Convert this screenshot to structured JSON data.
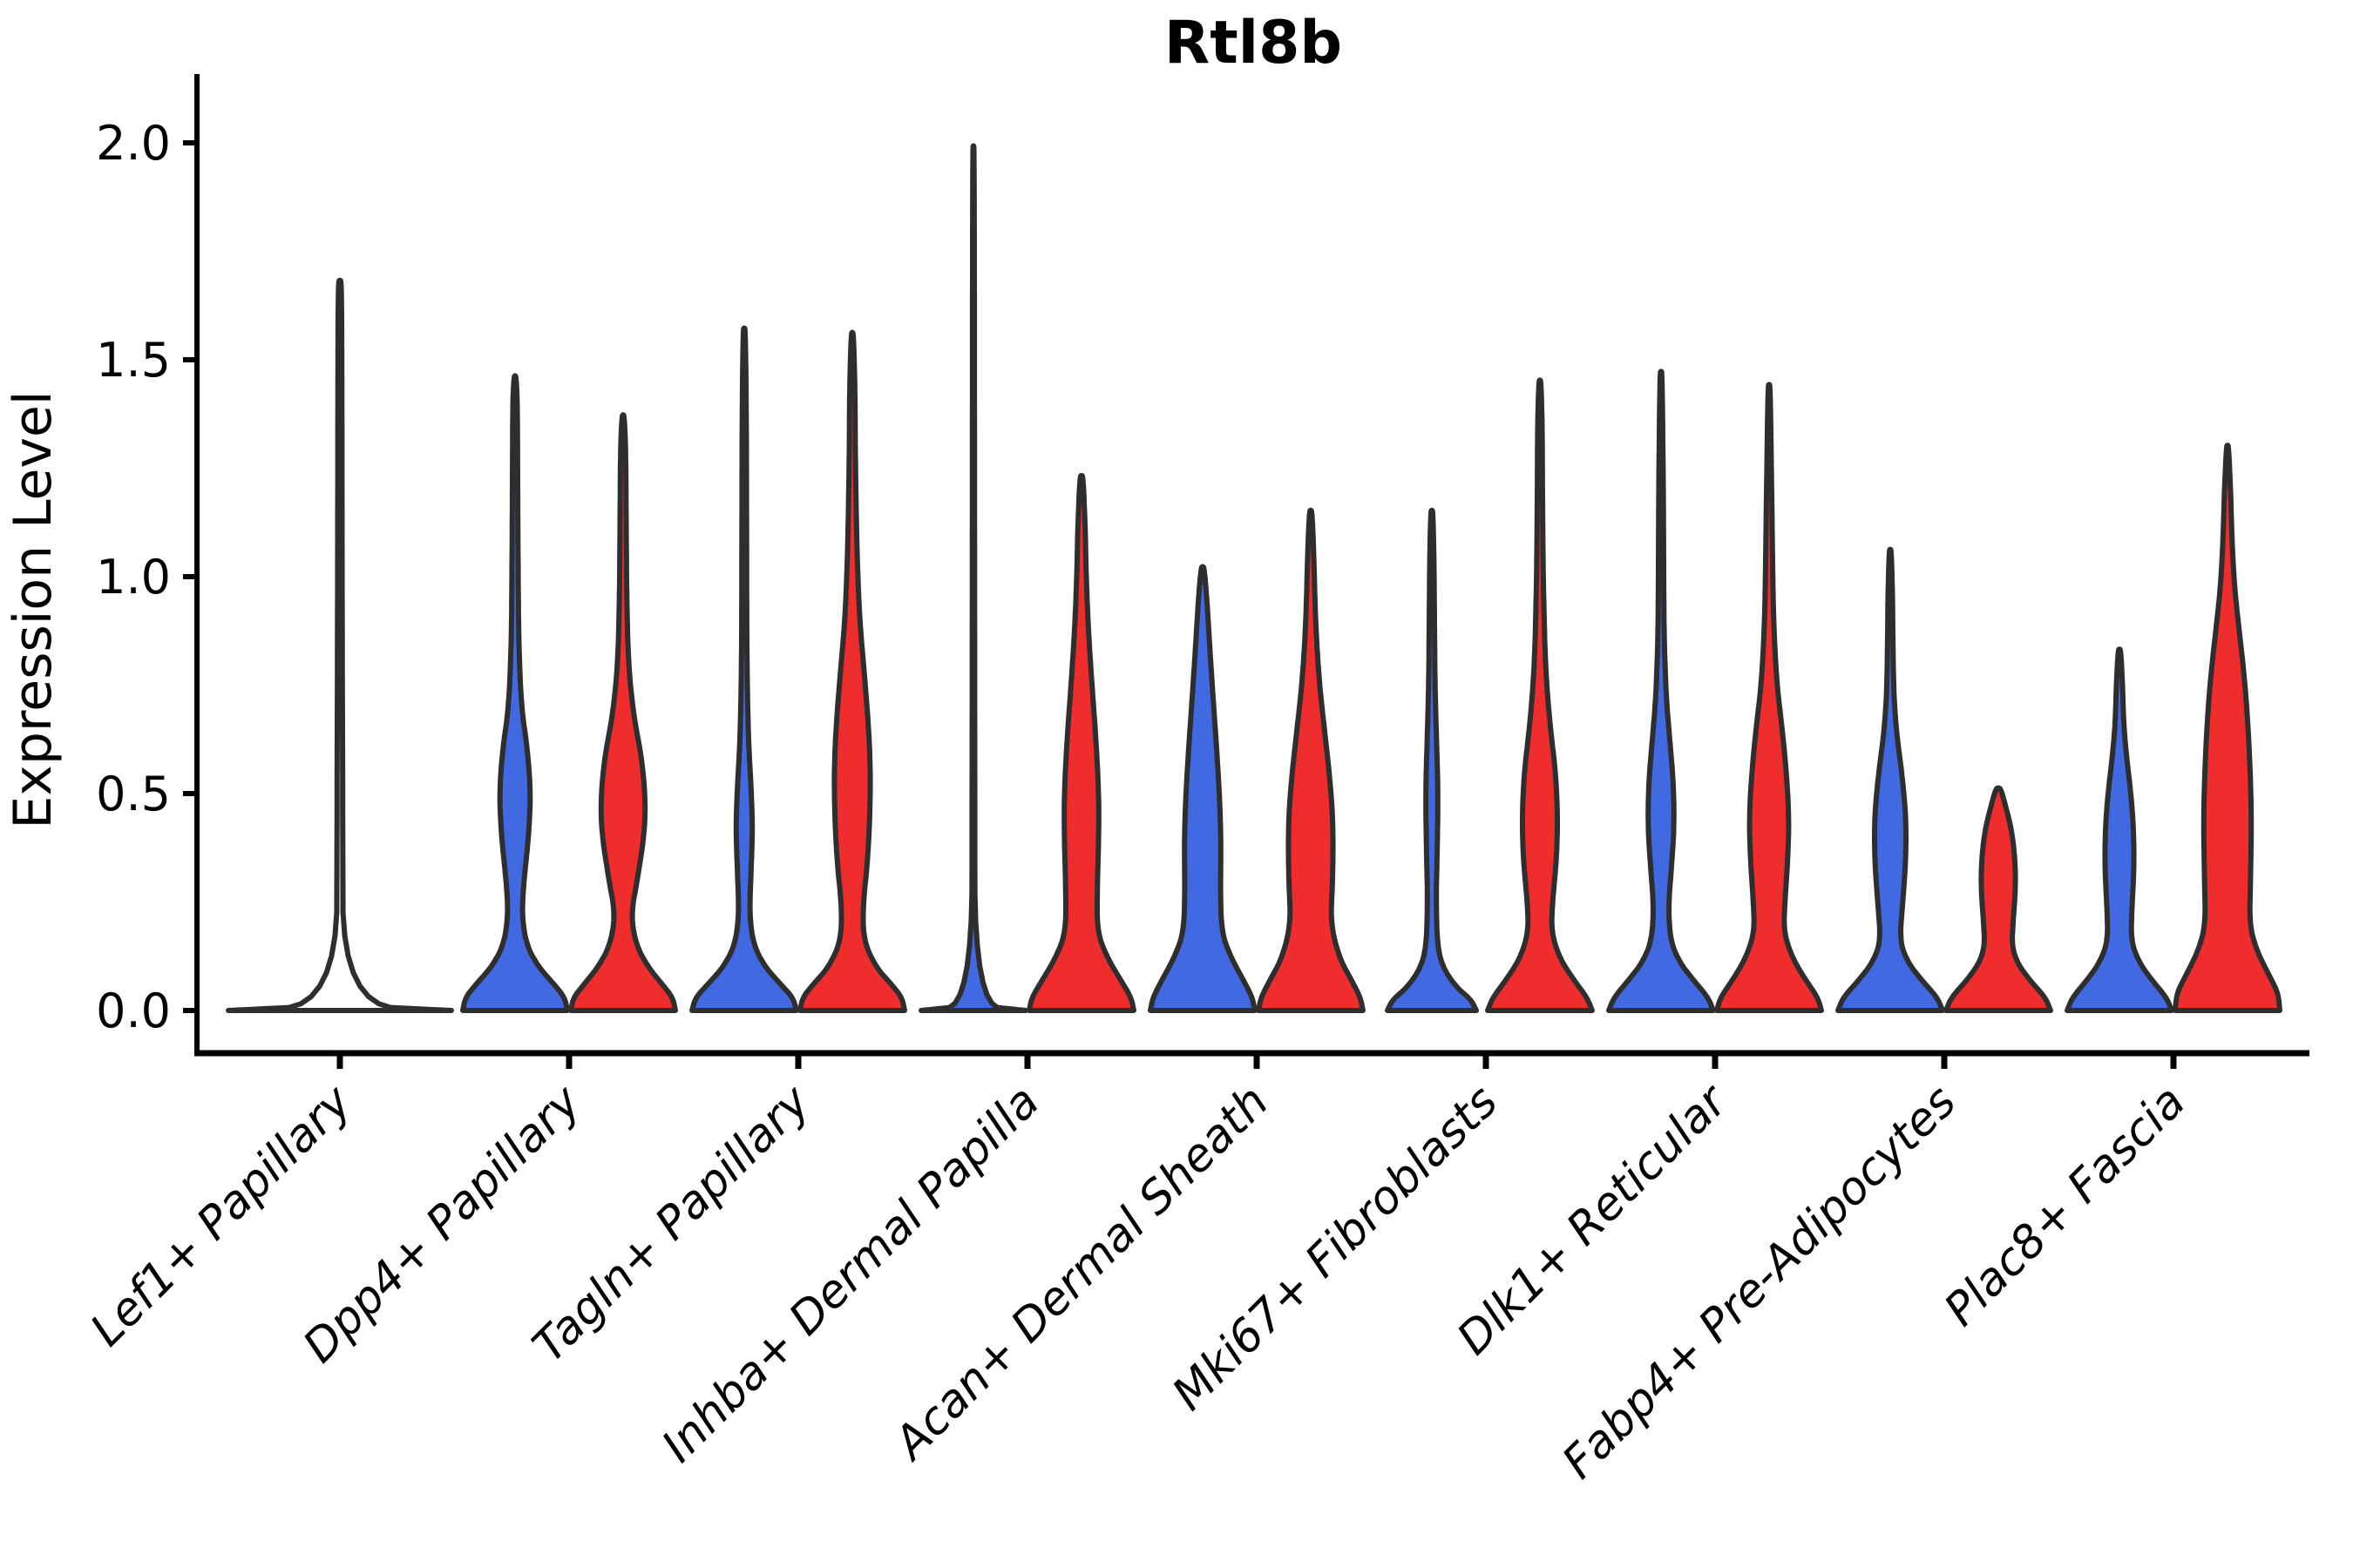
{
  "title": "Rtl8b",
  "y_axis": {
    "label": "Expression Level",
    "tick_labels": [
      "2.0",
      "1.5",
      "1.0",
      "0.5",
      "0.0"
    ],
    "tick_values": [
      2.0,
      1.5,
      1.0,
      0.5,
      0.0
    ],
    "range": [
      0.0,
      2.08
    ]
  },
  "colors": {
    "blue": "#4169E1",
    "red": "#F02D2D",
    "edge": "#2E2E2E",
    "axis": "#000000",
    "background": "#FFFFFF",
    "collapsed_fill": "#FFFFFF"
  },
  "chart_data": {
    "type": "violin",
    "title": "Rtl8b",
    "xlabel": "",
    "ylabel": "Expression Level",
    "ylim": [
      0.0,
      2.08
    ],
    "grid": false,
    "legend": "none",
    "categories": [
      "Lef1+ Papillary",
      "Dpp4+ Papillary",
      "Tagln+ Papillary",
      "Inhba+ Dermal Papilla",
      "Acan+ Dermal Sheath",
      "Mki67+ Fibroblasts",
      "Dlk1+ Reticular",
      "Fabp4+ Pre-Adipocytes",
      "Plac8+ Fascia"
    ],
    "groups": [
      {
        "name": "blue",
        "color_key": "blue"
      },
      {
        "name": "red",
        "color_key": "red"
      }
    ],
    "max_values": {
      "Lef1+ Papillary": {
        "single": 1.68
      },
      "Dpp4+ Papillary": {
        "blue": 1.46,
        "red": 1.37
      },
      "Tagln+ Papillary": {
        "blue": 1.57,
        "red": 1.56
      },
      "Inhba+ Dermal Papilla": {
        "blue": 1.99,
        "red": 1.23
      },
      "Acan+ Dermal Sheath": {
        "blue": 1.02,
        "red": 1.15
      },
      "Mki67+ Fibroblasts": {
        "blue": 1.15,
        "red": 1.45
      },
      "Dlk1+ Reticular": {
        "blue": 1.47,
        "red": 1.44
      },
      "Fabp4+ Pre-Adipocytes": {
        "blue": 1.06,
        "red": 0.51
      },
      "Plac8+ Fascia": {
        "blue": 0.83,
        "red": 1.3
      }
    },
    "violins": [
      {
        "category": "Lef1+ Papillary",
        "group": "single",
        "color_key": "collapsed_fill",
        "max": 1.68,
        "profile": [
          [
            0,
            1.0
          ],
          [
            0.012,
            0.03
          ],
          [
            0.5,
            0.025
          ],
          [
            1.0,
            0.02
          ],
          [
            1.5,
            0.018
          ],
          [
            1.68,
            0.014
          ]
        ]
      },
      {
        "category": "Dpp4+ Papillary",
        "group": "blue",
        "color_key": "blue",
        "max": 1.46,
        "profile": [
          [
            0,
            1.0
          ],
          [
            0.03,
            0.95
          ],
          [
            0.06,
            0.75
          ],
          [
            0.1,
            0.45
          ],
          [
            0.15,
            0.22
          ],
          [
            0.22,
            0.13
          ],
          [
            0.3,
            0.17
          ],
          [
            0.4,
            0.26
          ],
          [
            0.5,
            0.3
          ],
          [
            0.6,
            0.24
          ],
          [
            0.7,
            0.12
          ],
          [
            0.85,
            0.07
          ],
          [
            1.0,
            0.06
          ],
          [
            1.2,
            0.05
          ],
          [
            1.4,
            0.045
          ],
          [
            1.46,
            0.02
          ]
        ]
      },
      {
        "category": "Dpp4+ Papillary",
        "group": "red",
        "color_key": "red",
        "max": 1.37,
        "profile": [
          [
            0,
            1.0
          ],
          [
            0.03,
            0.95
          ],
          [
            0.06,
            0.75
          ],
          [
            0.1,
            0.48
          ],
          [
            0.15,
            0.25
          ],
          [
            0.22,
            0.15
          ],
          [
            0.3,
            0.27
          ],
          [
            0.4,
            0.4
          ],
          [
            0.48,
            0.43
          ],
          [
            0.58,
            0.36
          ],
          [
            0.68,
            0.2
          ],
          [
            0.8,
            0.1
          ],
          [
            0.95,
            0.07
          ],
          [
            1.1,
            0.06
          ],
          [
            1.3,
            0.05
          ],
          [
            1.37,
            0.02
          ]
        ]
      },
      {
        "category": "Tagln+ Papillary",
        "group": "blue",
        "color_key": "blue",
        "max": 1.57,
        "profile": [
          [
            0,
            1.0
          ],
          [
            0.03,
            0.93
          ],
          [
            0.06,
            0.7
          ],
          [
            0.1,
            0.4
          ],
          [
            0.15,
            0.18
          ],
          [
            0.22,
            0.1
          ],
          [
            0.32,
            0.13
          ],
          [
            0.42,
            0.16
          ],
          [
            0.52,
            0.13
          ],
          [
            0.62,
            0.08
          ],
          [
            0.8,
            0.05
          ],
          [
            1.1,
            0.045
          ],
          [
            1.4,
            0.04
          ],
          [
            1.57,
            0.02
          ]
        ]
      },
      {
        "category": "Tagln+ Papillary",
        "group": "red",
        "color_key": "red",
        "max": 1.56,
        "profile": [
          [
            0,
            1.0
          ],
          [
            0.03,
            0.95
          ],
          [
            0.06,
            0.75
          ],
          [
            0.1,
            0.45
          ],
          [
            0.16,
            0.22
          ],
          [
            0.24,
            0.2
          ],
          [
            0.35,
            0.3
          ],
          [
            0.5,
            0.35
          ],
          [
            0.62,
            0.33
          ],
          [
            0.75,
            0.25
          ],
          [
            0.9,
            0.14
          ],
          [
            1.05,
            0.09
          ],
          [
            1.25,
            0.06
          ],
          [
            1.45,
            0.05
          ],
          [
            1.56,
            0.02
          ]
        ]
      },
      {
        "category": "Inhba+ Dermal Papilla",
        "group": "blue",
        "color_key": "blue",
        "max": 1.99,
        "profile": [
          [
            0,
            1.0
          ],
          [
            0.012,
            0.03
          ],
          [
            0.6,
            0.025
          ],
          [
            1.2,
            0.02
          ],
          [
            1.7,
            0.018
          ],
          [
            1.99,
            0.012
          ]
        ]
      },
      {
        "category": "Inhba+ Dermal Papilla",
        "group": "red",
        "color_key": "red",
        "max": 1.23,
        "profile": [
          [
            0,
            1.0
          ],
          [
            0.03,
            0.95
          ],
          [
            0.07,
            0.75
          ],
          [
            0.12,
            0.5
          ],
          [
            0.18,
            0.3
          ],
          [
            0.28,
            0.3
          ],
          [
            0.4,
            0.33
          ],
          [
            0.5,
            0.33
          ],
          [
            0.62,
            0.28
          ],
          [
            0.75,
            0.2
          ],
          [
            0.88,
            0.13
          ],
          [
            1.0,
            0.09
          ],
          [
            1.12,
            0.07
          ],
          [
            1.23,
            0.03
          ]
        ]
      },
      {
        "category": "Acan+ Dermal Sheath",
        "group": "blue",
        "color_key": "blue",
        "max": 1.02,
        "profile": [
          [
            0,
            1.0
          ],
          [
            0.03,
            0.95
          ],
          [
            0.07,
            0.78
          ],
          [
            0.12,
            0.55
          ],
          [
            0.18,
            0.36
          ],
          [
            0.28,
            0.34
          ],
          [
            0.38,
            0.35
          ],
          [
            0.48,
            0.33
          ],
          [
            0.6,
            0.27
          ],
          [
            0.72,
            0.2
          ],
          [
            0.85,
            0.13
          ],
          [
            0.95,
            0.08
          ],
          [
            1.02,
            0.03
          ]
        ]
      },
      {
        "category": "Acan+ Dermal Sheath",
        "group": "red",
        "color_key": "red",
        "max": 1.15,
        "profile": [
          [
            0,
            1.0
          ],
          [
            0.03,
            0.95
          ],
          [
            0.07,
            0.78
          ],
          [
            0.12,
            0.55
          ],
          [
            0.2,
            0.38
          ],
          [
            0.3,
            0.42
          ],
          [
            0.42,
            0.43
          ],
          [
            0.52,
            0.38
          ],
          [
            0.64,
            0.27
          ],
          [
            0.76,
            0.16
          ],
          [
            0.9,
            0.09
          ],
          [
            1.05,
            0.06
          ],
          [
            1.15,
            0.025
          ]
        ]
      },
      {
        "category": "Mki67+ Fibroblasts",
        "group": "blue",
        "color_key": "blue",
        "max": 1.15,
        "profile": [
          [
            0,
            0.85
          ],
          [
            0.025,
            0.75
          ],
          [
            0.05,
            0.5
          ],
          [
            0.09,
            0.25
          ],
          [
            0.14,
            0.11
          ],
          [
            0.25,
            0.08
          ],
          [
            0.35,
            0.1
          ],
          [
            0.5,
            0.12
          ],
          [
            0.62,
            0.09
          ],
          [
            0.75,
            0.06
          ],
          [
            0.9,
            0.05
          ],
          [
            1.05,
            0.04
          ],
          [
            1.15,
            0.02
          ]
        ]
      },
      {
        "category": "Mki67+ Fibroblasts",
        "group": "red",
        "color_key": "red",
        "max": 1.45,
        "profile": [
          [
            0,
            1.0
          ],
          [
            0.03,
            0.9
          ],
          [
            0.07,
            0.65
          ],
          [
            0.12,
            0.38
          ],
          [
            0.18,
            0.22
          ],
          [
            0.25,
            0.24
          ],
          [
            0.35,
            0.32
          ],
          [
            0.45,
            0.34
          ],
          [
            0.55,
            0.3
          ],
          [
            0.65,
            0.2
          ],
          [
            0.78,
            0.11
          ],
          [
            0.95,
            0.07
          ],
          [
            1.15,
            0.05
          ],
          [
            1.35,
            0.045
          ],
          [
            1.45,
            0.02
          ]
        ]
      },
      {
        "category": "Dlk1+ Reticular",
        "group": "blue",
        "color_key": "blue",
        "max": 1.47,
        "profile": [
          [
            0,
            1.0
          ],
          [
            0.03,
            0.9
          ],
          [
            0.07,
            0.62
          ],
          [
            0.11,
            0.36
          ],
          [
            0.16,
            0.18
          ],
          [
            0.24,
            0.14
          ],
          [
            0.33,
            0.2
          ],
          [
            0.42,
            0.25
          ],
          [
            0.52,
            0.24
          ],
          [
            0.62,
            0.17
          ],
          [
            0.72,
            0.1
          ],
          [
            0.85,
            0.06
          ],
          [
            1.0,
            0.05
          ],
          [
            1.2,
            0.045
          ],
          [
            1.47,
            0.02
          ]
        ]
      },
      {
        "category": "Dlk1+ Reticular",
        "group": "red",
        "color_key": "red",
        "max": 1.44,
        "profile": [
          [
            0,
            1.0
          ],
          [
            0.03,
            0.93
          ],
          [
            0.07,
            0.7
          ],
          [
            0.12,
            0.45
          ],
          [
            0.18,
            0.28
          ],
          [
            0.25,
            0.3
          ],
          [
            0.35,
            0.36
          ],
          [
            0.45,
            0.38
          ],
          [
            0.55,
            0.33
          ],
          [
            0.65,
            0.25
          ],
          [
            0.75,
            0.15
          ],
          [
            0.88,
            0.09
          ],
          [
            1.0,
            0.07
          ],
          [
            1.2,
            0.05
          ],
          [
            1.44,
            0.02
          ]
        ]
      },
      {
        "category": "Fabp4+ Pre-Adipocytes",
        "group": "blue",
        "color_key": "blue",
        "max": 1.06,
        "profile": [
          [
            0,
            1.0
          ],
          [
            0.03,
            0.9
          ],
          [
            0.07,
            0.6
          ],
          [
            0.11,
            0.34
          ],
          [
            0.16,
            0.18
          ],
          [
            0.25,
            0.24
          ],
          [
            0.35,
            0.3
          ],
          [
            0.45,
            0.3
          ],
          [
            0.55,
            0.22
          ],
          [
            0.63,
            0.13
          ],
          [
            0.72,
            0.07
          ],
          [
            0.85,
            0.05
          ],
          [
            0.95,
            0.045
          ],
          [
            1.06,
            0.02
          ]
        ]
      },
      {
        "category": "Fabp4+ Pre-Adipocytes",
        "group": "red",
        "color_key": "red",
        "max": 0.51,
        "profile": [
          [
            0,
            1.0
          ],
          [
            0.03,
            0.9
          ],
          [
            0.07,
            0.6
          ],
          [
            0.11,
            0.36
          ],
          [
            0.15,
            0.26
          ],
          [
            0.2,
            0.28
          ],
          [
            0.28,
            0.33
          ],
          [
            0.35,
            0.32
          ],
          [
            0.42,
            0.25
          ],
          [
            0.48,
            0.12
          ],
          [
            0.51,
            0.05
          ]
        ]
      },
      {
        "category": "Plac8+ Fascia",
        "group": "blue",
        "color_key": "blue",
        "max": 0.83,
        "profile": [
          [
            0,
            1.0
          ],
          [
            0.03,
            0.9
          ],
          [
            0.07,
            0.62
          ],
          [
            0.11,
            0.38
          ],
          [
            0.16,
            0.22
          ],
          [
            0.24,
            0.24
          ],
          [
            0.33,
            0.28
          ],
          [
            0.42,
            0.27
          ],
          [
            0.5,
            0.22
          ],
          [
            0.58,
            0.14
          ],
          [
            0.66,
            0.08
          ],
          [
            0.75,
            0.06
          ],
          [
            0.83,
            0.025
          ]
        ]
      },
      {
        "category": "Plac8+ Fascia",
        "group": "red",
        "color_key": "red",
        "max": 1.3,
        "profile": [
          [
            0,
            1.0
          ],
          [
            0.04,
            0.97
          ],
          [
            0.08,
            0.8
          ],
          [
            0.14,
            0.55
          ],
          [
            0.2,
            0.42
          ],
          [
            0.3,
            0.44
          ],
          [
            0.45,
            0.46
          ],
          [
            0.6,
            0.42
          ],
          [
            0.75,
            0.34
          ],
          [
            0.88,
            0.22
          ],
          [
            0.98,
            0.13
          ],
          [
            1.1,
            0.08
          ],
          [
            1.2,
            0.06
          ],
          [
            1.3,
            0.02
          ]
        ]
      }
    ]
  }
}
